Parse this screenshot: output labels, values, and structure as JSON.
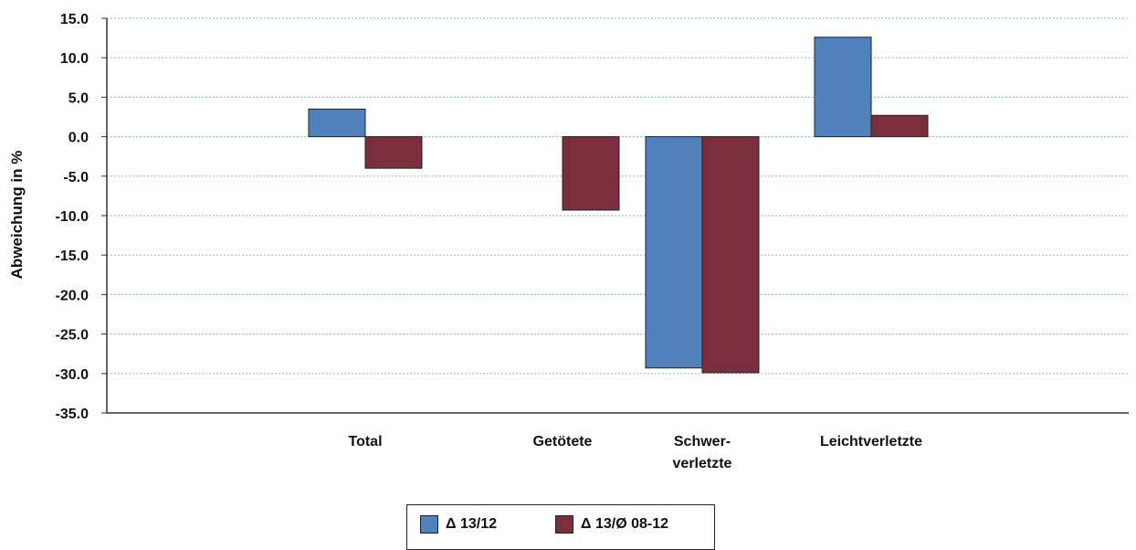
{
  "chart_data": {
    "type": "bar",
    "categories": [
      [
        "Total"
      ],
      [
        "Getötete"
      ],
      [
        "Schwer-",
        "verletzte"
      ],
      [
        "Leichtverletzte"
      ]
    ],
    "series": [
      {
        "name": "Δ 13/12",
        "color": "#4f81bd",
        "values": [
          3.5,
          0.0,
          -29.3,
          12.6
        ]
      },
      {
        "name": "Δ 13/Ø 08-12",
        "color": "#7b2e3b",
        "values": [
          -4.0,
          -9.3,
          -29.9,
          2.7
        ]
      }
    ],
    "ylabel": "Abweichung in %",
    "ylim": [
      -35,
      15
    ],
    "yticks": [
      "15.0",
      "10.0",
      "5.0",
      "0.0",
      "-5.0",
      "-10.0",
      "-15.0",
      "-20.0",
      "-25.0",
      "-30.0",
      "-35.0"
    ],
    "grid": true,
    "legend_position": "bottom"
  }
}
